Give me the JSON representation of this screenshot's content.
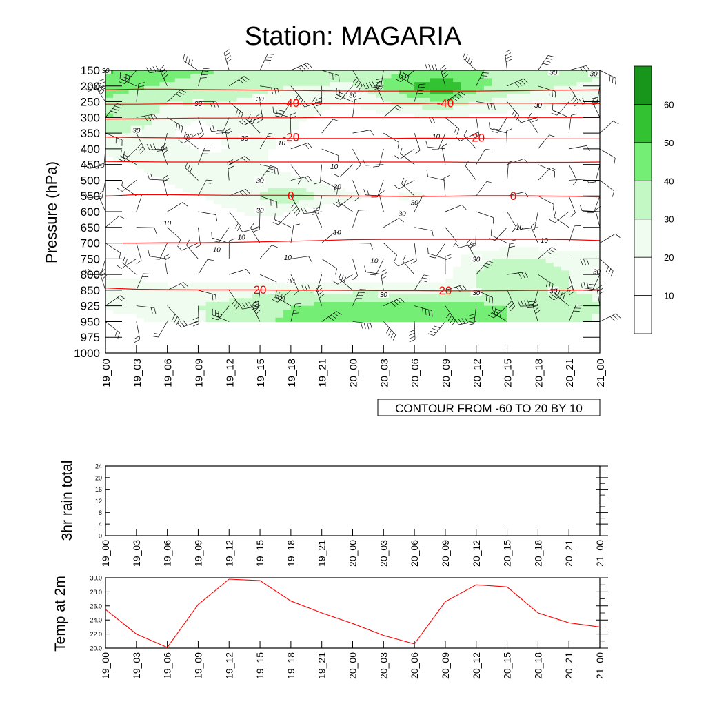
{
  "title": "Station: MAGARIA",
  "time_labels": [
    "19_00",
    "19_03",
    "19_06",
    "19_09",
    "19_12",
    "19_15",
    "19_18",
    "19_21",
    "20_00",
    "20_03",
    "20_06",
    "20_09",
    "20_12",
    "20_15",
    "20_18",
    "20_21",
    "21_00"
  ],
  "colors": {
    "shade": [
      "#ffffff",
      "#ffffff",
      "#f0fcf0",
      "#c3f7c3",
      "#74ee74",
      "#32c232",
      "#17961b"
    ],
    "temp_contour": "#ff0000",
    "speed_contour": "#000000",
    "barb": "#000000"
  },
  "chart_data": [
    {
      "type": "heatmap",
      "name": "cross-section",
      "ylabel": "Pressure (hPa)",
      "pressure_levels": [
        150,
        200,
        250,
        300,
        350,
        400,
        450,
        500,
        550,
        600,
        650,
        700,
        750,
        800,
        850,
        925,
        950,
        975,
        1000
      ],
      "ylim": [
        1000,
        150
      ],
      "y_reversed": true,
      "x_tick_labels_ref": "time_labels",
      "info_label": "CONTOUR FROM -60 TO 20 BY 10",
      "legend": {
        "placement": "right",
        "labels": [
          "10",
          "20",
          "30",
          "40",
          "50",
          "60"
        ]
      },
      "wind_speed_grid": {
        "rows_pressure": [
          150,
          200,
          250,
          300,
          350,
          400,
          450,
          500,
          550,
          600,
          650,
          700,
          750,
          800,
          850,
          925,
          950
        ],
        "values": [
          [
            52,
            48,
            45,
            42,
            40,
            40,
            38,
            35,
            35,
            38,
            40,
            42,
            40,
            38,
            36,
            34,
            32
          ],
          [
            45,
            42,
            38,
            35,
            33,
            32,
            30,
            30,
            28,
            40,
            52,
            60,
            44,
            36,
            32,
            30,
            28
          ],
          [
            38,
            34,
            30,
            32,
            30,
            28,
            26,
            22,
            20,
            30,
            36,
            40,
            30,
            26,
            24,
            22,
            22
          ],
          [
            42,
            36,
            26,
            22,
            24,
            26,
            22,
            18,
            14,
            16,
            18,
            20,
            18,
            16,
            14,
            14,
            14
          ],
          [
            30,
            30,
            22,
            14,
            22,
            28,
            20,
            14,
            10,
            8,
            10,
            10,
            10,
            8,
            8,
            8,
            8
          ],
          [
            24,
            26,
            28,
            18,
            20,
            22,
            16,
            10,
            8,
            6,
            6,
            6,
            6,
            6,
            6,
            6,
            6
          ],
          [
            16,
            20,
            28,
            26,
            22,
            20,
            14,
            10,
            8,
            8,
            8,
            6,
            6,
            6,
            6,
            6,
            6
          ],
          [
            12,
            14,
            20,
            26,
            30,
            28,
            24,
            18,
            12,
            10,
            12,
            10,
            8,
            8,
            8,
            8,
            8
          ],
          [
            10,
            12,
            16,
            20,
            26,
            30,
            40,
            28,
            22,
            18,
            24,
            14,
            10,
            8,
            8,
            8,
            8
          ],
          [
            10,
            10,
            12,
            14,
            18,
            24,
            20,
            16,
            12,
            10,
            10,
            8,
            8,
            8,
            8,
            8,
            8
          ],
          [
            10,
            10,
            8,
            8,
            10,
            10,
            10,
            10,
            8,
            8,
            10,
            8,
            10,
            10,
            10,
            10,
            10
          ],
          [
            12,
            10,
            8,
            8,
            8,
            8,
            8,
            8,
            8,
            8,
            8,
            8,
            12,
            14,
            14,
            12,
            12
          ],
          [
            14,
            12,
            10,
            8,
            8,
            8,
            8,
            8,
            8,
            8,
            8,
            12,
            28,
            32,
            30,
            28,
            26
          ],
          [
            18,
            18,
            16,
            14,
            14,
            14,
            12,
            10,
            8,
            8,
            10,
            16,
            30,
            34,
            32,
            30,
            28
          ],
          [
            26,
            24,
            22,
            24,
            26,
            28,
            30,
            28,
            28,
            28,
            26,
            28,
            30,
            30,
            30,
            30,
            28
          ],
          [
            22,
            22,
            26,
            30,
            32,
            36,
            40,
            42,
            44,
            44,
            44,
            44,
            42,
            40,
            40,
            36,
            30
          ],
          [
            16,
            18,
            22,
            28,
            34,
            38,
            42,
            46,
            48,
            50,
            48,
            50,
            44,
            40,
            36,
            34,
            28
          ]
        ]
      },
      "temperature_contours_degC": [
        {
          "value": -50,
          "pressure": [
            212,
            210,
            210,
            211,
            212,
            213,
            214,
            215,
            216,
            216,
            216,
            216,
            216,
            215,
            214,
            213,
            212
          ]
        },
        {
          "value": -40,
          "pressure": [
            258,
            258,
            257,
            257,
            257,
            257,
            256,
            256,
            256,
            256,
            256,
            255,
            255,
            255,
            255,
            256,
            256
          ]
        },
        {
          "value": -30,
          "pressure": [
            305,
            304,
            303,
            302,
            302,
            301,
            301,
            300,
            300,
            300,
            300,
            300,
            300,
            300,
            300,
            300,
            300
          ]
        },
        {
          "value": -20,
          "pressure": [
            362,
            364,
            365,
            366,
            366,
            366,
            367,
            367,
            367,
            367,
            366,
            366,
            367,
            368,
            368,
            368,
            368
          ]
        },
        {
          "value": -10,
          "pressure": [
            440,
            441,
            442,
            442,
            442,
            442,
            442,
            442,
            442,
            442,
            442,
            442,
            443,
            443,
            443,
            443,
            442
          ]
        },
        {
          "value": 0,
          "pressure": [
            551,
            546,
            546,
            547,
            548,
            548,
            548,
            549,
            550,
            551,
            552,
            551,
            549,
            549,
            550,
            551,
            553
          ]
        },
        {
          "value": 10,
          "pressure": [
            700,
            700,
            699,
            699,
            698,
            696,
            694,
            692,
            689,
            688,
            688,
            688,
            688,
            688,
            688,
            689,
            692
          ]
        },
        {
          "value": 20,
          "pressure": [
            843,
            847,
            848,
            849,
            849,
            849,
            850,
            850,
            851,
            852,
            852,
            853,
            853,
            852,
            851,
            850,
            849
          ]
        }
      ],
      "wind_barbs_placement": "every time step at each level 150-950 hPa"
    },
    {
      "type": "line",
      "name": "rain",
      "ylabel": "3hr rain total",
      "y_ticks": [
        "0",
        "4",
        "8",
        "12",
        "16",
        "20",
        "24"
      ],
      "ylim": [
        0,
        24
      ],
      "x_tick_labels_ref": "time_labels",
      "values": []
    },
    {
      "type": "line",
      "name": "temp2m",
      "ylabel": "Temp at 2m",
      "y_ticks": [
        "20.0",
        "22.0",
        "24.0",
        "26.0",
        "28.0",
        "30.0"
      ],
      "ylim": [
        20,
        30
      ],
      "x_tick_labels_ref": "time_labels",
      "values": [
        25.5,
        22.0,
        20.1,
        26.2,
        29.8,
        29.6,
        26.7,
        25.0,
        23.5,
        21.8,
        20.6,
        26.6,
        29.0,
        28.7,
        25.0,
        23.6,
        23.0
      ],
      "color": "#ff0000"
    }
  ]
}
